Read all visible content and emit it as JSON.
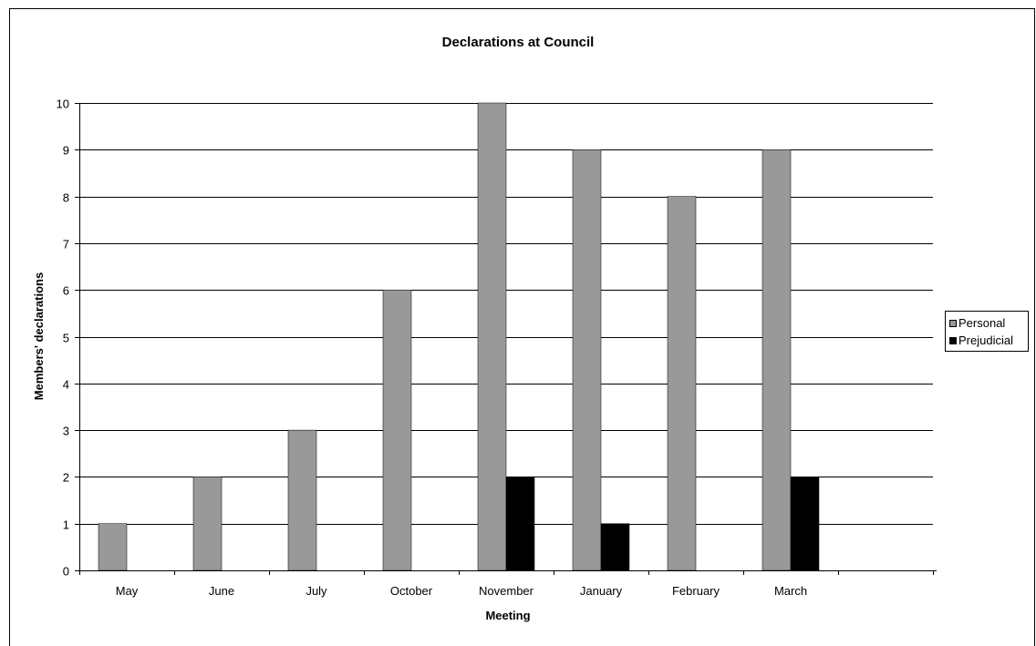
{
  "chart_data": {
    "type": "bar",
    "title": "Declarations at Council",
    "xlabel": "Meeting",
    "ylabel": "Members' declarations",
    "categories": [
      "May",
      "June",
      "July",
      "October",
      "November",
      "January",
      "February",
      "March",
      ""
    ],
    "series": [
      {
        "name": "Personal",
        "color": "#999999",
        "values": [
          1,
          2,
          3,
          6,
          10,
          9,
          8,
          9,
          null
        ]
      },
      {
        "name": "Prejudicial",
        "color": "#000000",
        "values": [
          0,
          0,
          0,
          0,
          2,
          1,
          0,
          2,
          null
        ]
      }
    ],
    "ylim": [
      0,
      10
    ],
    "yticks": [
      0,
      1,
      2,
      3,
      4,
      5,
      6,
      7,
      8,
      9,
      10
    ],
    "grid": true,
    "legend_position": "right"
  }
}
